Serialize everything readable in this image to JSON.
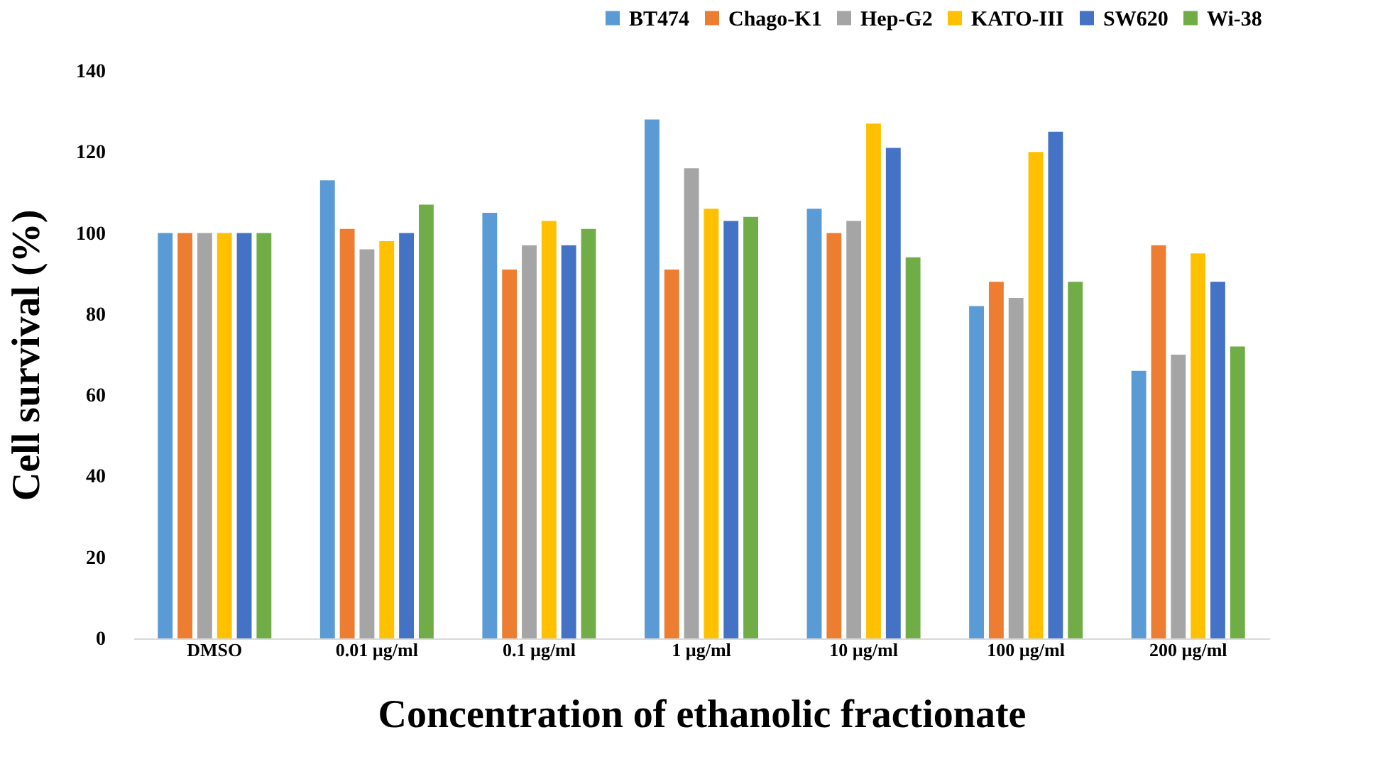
{
  "chart_data": {
    "type": "bar",
    "xlabel": "Concentration of ethanolic fractionate",
    "ylabel": "Cell survival (%)",
    "categories": [
      "DMSO",
      "0.01 µg/ml",
      "0.1 µg/ml",
      "1 µg/ml",
      "10 µg/ml",
      "100 µg/ml",
      "200 µg/ml"
    ],
    "ylim": [
      0,
      140
    ],
    "yticks": [
      0,
      20,
      40,
      60,
      80,
      100,
      120,
      140
    ],
    "grid": false,
    "legend": "top right",
    "series": [
      {
        "name": "BT474",
        "color": "#5b9bd5",
        "values": [
          100,
          113,
          105,
          128,
          106,
          82,
          66
        ]
      },
      {
        "name": "Chago-K1",
        "color": "#ed7d31",
        "values": [
          100,
          101,
          91,
          91,
          100,
          88,
          97
        ]
      },
      {
        "name": "Hep-G2",
        "color": "#a5a5a5",
        "values": [
          100,
          96,
          97,
          116,
          103,
          84,
          70
        ]
      },
      {
        "name": "KATO-III",
        "color": "#ffc000",
        "values": [
          100,
          98,
          103,
          106,
          127,
          120,
          95
        ]
      },
      {
        "name": "SW620",
        "color": "#4472c4",
        "values": [
          100,
          100,
          97,
          103,
          121,
          125,
          88
        ]
      },
      {
        "name": "Wi-38",
        "color": "#70ad47",
        "values": [
          100,
          107,
          101,
          104,
          94,
          88,
          72
        ]
      }
    ]
  }
}
